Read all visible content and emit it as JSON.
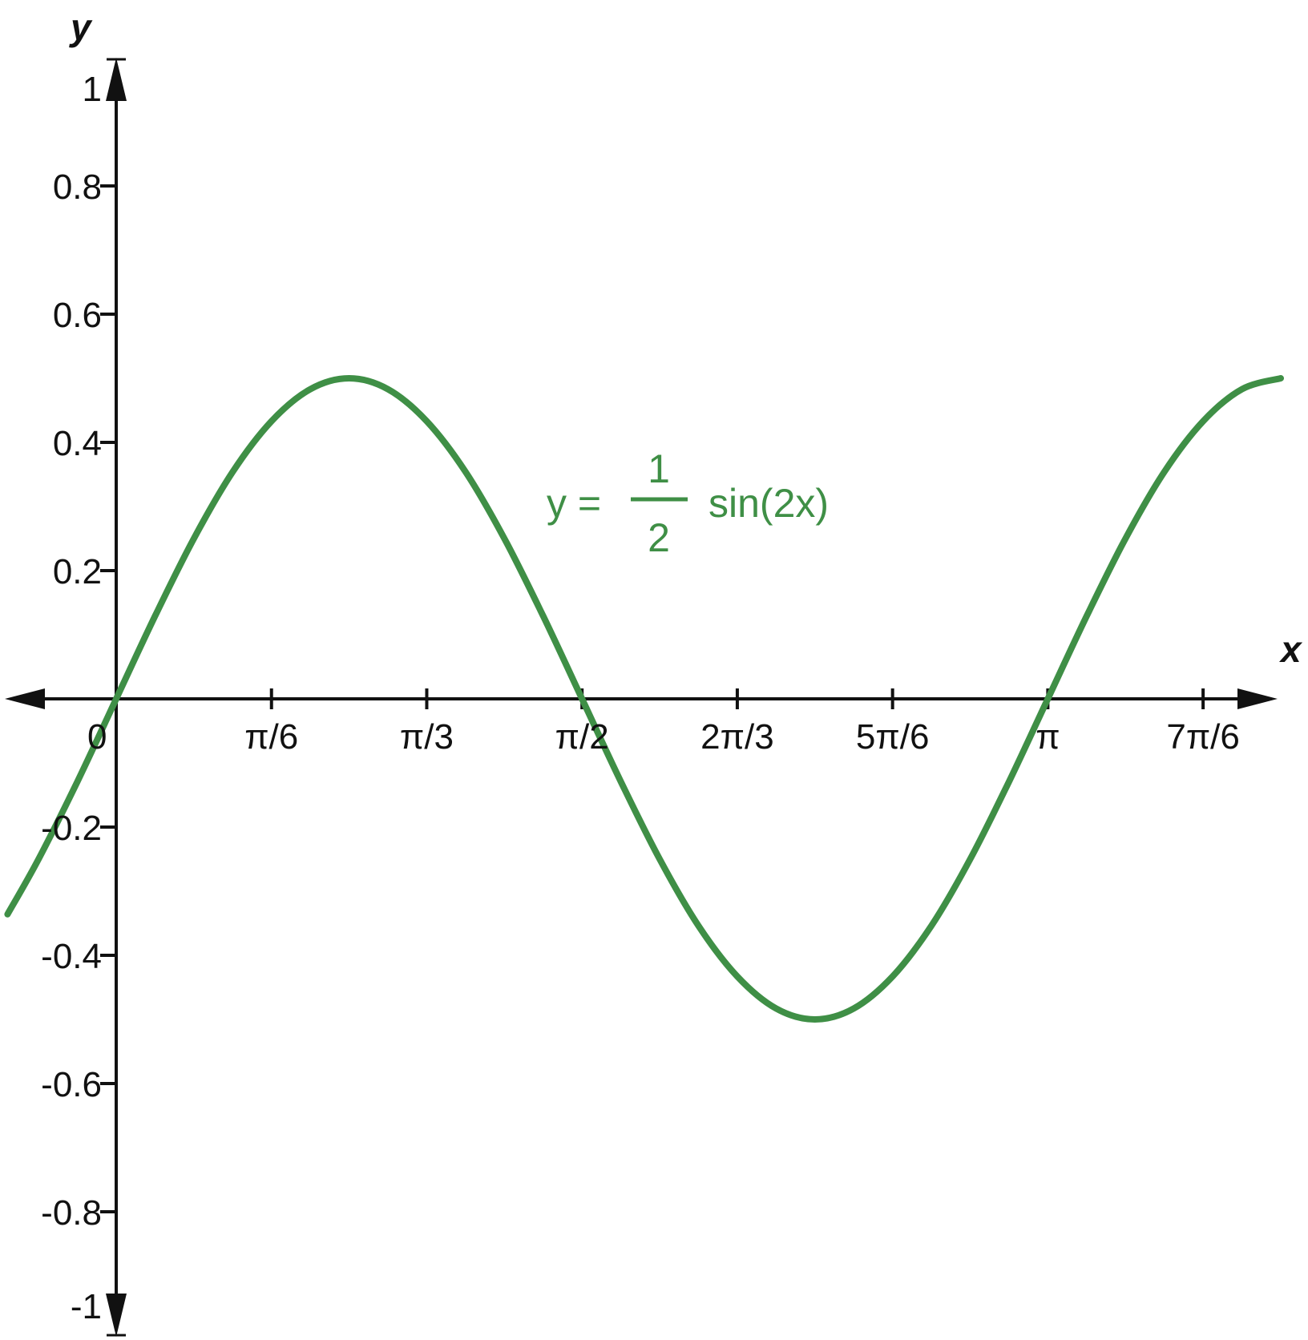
{
  "chart_data": {
    "type": "line",
    "title": "",
    "xlabel": "x",
    "ylabel": "y",
    "xlim": [
      -0.3665,
      3.8746
    ],
    "ylim": [
      -1,
      1
    ],
    "grid": false,
    "legend": "none",
    "x_ticks": [
      {
        "value": 0,
        "label": "0"
      },
      {
        "value": 0.5236,
        "label": "π/6"
      },
      {
        "value": 1.0472,
        "label": "π/3"
      },
      {
        "value": 1.5708,
        "label": "π/2"
      },
      {
        "value": 2.0944,
        "label": "2π/3"
      },
      {
        "value": 2.618,
        "label": "5π/6"
      },
      {
        "value": 3.1416,
        "label": "π"
      },
      {
        "value": 3.6652,
        "label": "7π/6"
      }
    ],
    "y_ticks": [
      {
        "value": 1,
        "label": "1"
      },
      {
        "value": 0.8,
        "label": "0.8"
      },
      {
        "value": 0.6,
        "label": "0.6"
      },
      {
        "value": 0.4,
        "label": "0.4"
      },
      {
        "value": 0.2,
        "label": "0.2"
      },
      {
        "value": -0.2,
        "label": "-0.2"
      },
      {
        "value": -0.4,
        "label": "-0.4"
      },
      {
        "value": -0.6,
        "label": "-0.6"
      },
      {
        "value": -0.8,
        "label": "-0.8"
      },
      {
        "value": -1,
        "label": "-1"
      }
    ],
    "series": [
      {
        "color": "#3f8f46",
        "x": [
          -0.3665,
          -0.2618,
          -0.1309,
          0,
          0.1309,
          0.2618,
          0.3927,
          0.5236,
          0.6545,
          0.7854,
          0.9163,
          1.0472,
          1.1781,
          1.309,
          1.4399,
          1.5708,
          1.7017,
          1.8326,
          1.9635,
          2.0944,
          2.2253,
          2.3562,
          2.4871,
          2.618,
          2.7489,
          2.8798,
          3.0107,
          3.1416,
          3.2725,
          3.4034,
          3.5343,
          3.6652,
          3.7961,
          3.927
        ],
        "y": [
          -0.336,
          -0.25,
          -0.129,
          0,
          0.129,
          0.25,
          0.354,
          0.433,
          0.483,
          0.5,
          0.483,
          0.433,
          0.354,
          0.25,
          0.129,
          0,
          -0.129,
          -0.25,
          -0.354,
          -0.433,
          -0.483,
          -0.5,
          -0.483,
          -0.433,
          -0.354,
          -0.25,
          -0.129,
          0,
          0.129,
          0.25,
          0.354,
          0.433,
          0.483,
          0.5
        ]
      }
    ],
    "annotation": {
      "prefix": "y =",
      "numerator": "1",
      "denominator": "2",
      "suffix": "sin(2x)",
      "color": "#3f8f46"
    }
  }
}
